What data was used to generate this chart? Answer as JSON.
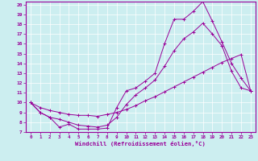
{
  "xlabel": "Windchill (Refroidissement éolien,°C)",
  "xlim": [
    -0.5,
    23.5
  ],
  "ylim": [
    7,
    20.3
  ],
  "xticks": [
    0,
    1,
    2,
    3,
    4,
    5,
    6,
    7,
    8,
    9,
    10,
    11,
    12,
    13,
    14,
    15,
    16,
    17,
    18,
    19,
    20,
    21,
    22,
    23
  ],
  "yticks": [
    7,
    8,
    9,
    10,
    11,
    12,
    13,
    14,
    15,
    16,
    17,
    18,
    19,
    20
  ],
  "bg_color": "#cceef0",
  "line_color": "#990099",
  "curve1_x": [
    0,
    1,
    2,
    3,
    4,
    5,
    6,
    7,
    8,
    9,
    10,
    11,
    12,
    13,
    14,
    15,
    16,
    17,
    18,
    19,
    20,
    21,
    22,
    23
  ],
  "curve1_y": [
    10.0,
    9.0,
    8.5,
    7.5,
    7.8,
    7.3,
    7.3,
    7.3,
    7.4,
    9.5,
    11.2,
    11.5,
    12.2,
    13.0,
    16.0,
    18.5,
    18.5,
    19.3,
    20.3,
    18.3,
    16.2,
    14.0,
    12.5,
    11.2
  ],
  "curve2_x": [
    0,
    1,
    2,
    3,
    4,
    5,
    6,
    7,
    8,
    9,
    10,
    11,
    12,
    13,
    14,
    15,
    16,
    17,
    18,
    19,
    20,
    21,
    22,
    23
  ],
  "curve2_y": [
    10.0,
    9.0,
    8.5,
    8.3,
    8.0,
    7.7,
    7.6,
    7.5,
    7.7,
    8.5,
    9.8,
    10.8,
    11.5,
    12.3,
    13.7,
    15.3,
    16.5,
    17.2,
    18.1,
    17.0,
    15.8,
    13.2,
    11.5,
    11.2
  ],
  "curve3_x": [
    0,
    1,
    2,
    3,
    4,
    5,
    6,
    7,
    8,
    9,
    10,
    11,
    12,
    13,
    14,
    15,
    16,
    17,
    18,
    19,
    20,
    21,
    22,
    23
  ],
  "curve3_y": [
    10.0,
    9.5,
    9.2,
    9.0,
    8.8,
    8.7,
    8.7,
    8.6,
    8.8,
    9.0,
    9.3,
    9.7,
    10.2,
    10.6,
    11.1,
    11.6,
    12.1,
    12.6,
    13.1,
    13.6,
    14.1,
    14.5,
    14.9,
    11.2
  ]
}
